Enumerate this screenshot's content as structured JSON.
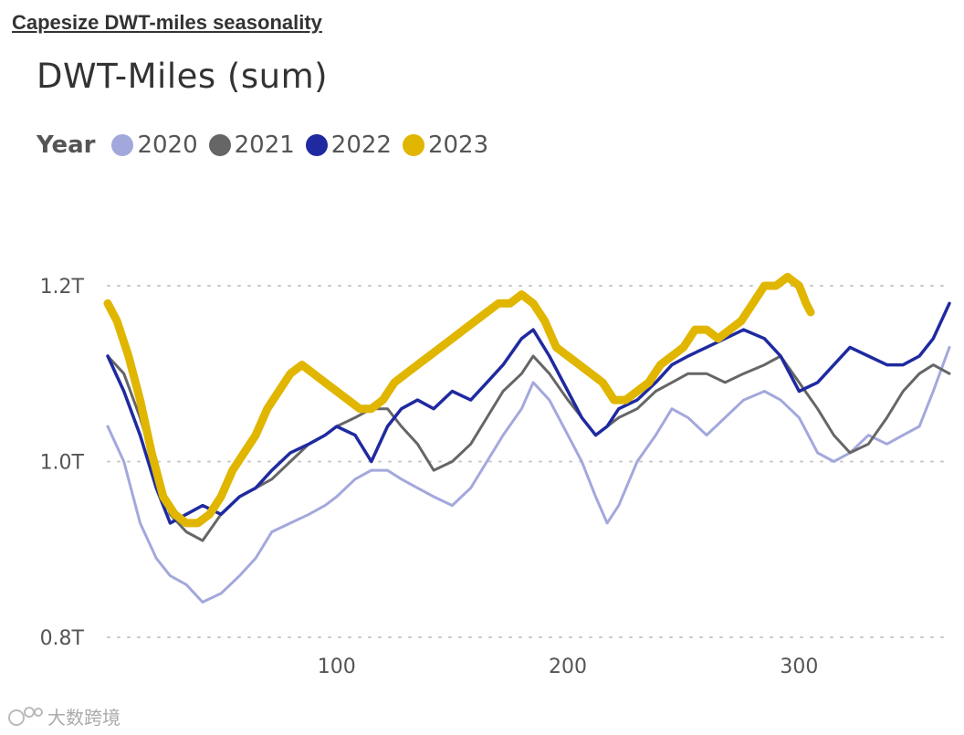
{
  "heading": "Capesize DWT-miles seasonality",
  "watermark": "大数跨境",
  "chart_data": {
    "type": "line",
    "title": "DWT-Miles (sum)",
    "legend_title": "Year",
    "legend_position": "top-left",
    "xlabel": "",
    "ylabel": "",
    "xlim": [
      1,
      365
    ],
    "ylim": [
      0.8,
      1.2
    ],
    "x_ticks": [
      100,
      200,
      300
    ],
    "x_tick_labels": [
      "100",
      "200",
      "300"
    ],
    "y_ticks": [
      0.8,
      1.0,
      1.2
    ],
    "y_tick_labels": [
      "0.8T",
      "1.0T",
      "1.2T"
    ],
    "grid": "horizontal-dotted",
    "series": [
      {
        "name": "2020",
        "color": "#a3a8dc",
        "line_width": 3,
        "x": [
          1,
          8,
          15,
          22,
          28,
          35,
          42,
          50,
          58,
          65,
          72,
          80,
          88,
          95,
          100,
          108,
          115,
          122,
          128,
          135,
          142,
          150,
          158,
          165,
          172,
          180,
          185,
          192,
          200,
          206,
          212,
          217,
          222,
          230,
          238,
          245,
          252,
          260,
          268,
          276,
          285,
          292,
          300,
          308,
          315,
          322,
          330,
          338,
          345,
          352,
          358,
          365
        ],
        "values": [
          1.04,
          1.0,
          0.93,
          0.89,
          0.87,
          0.86,
          0.84,
          0.85,
          0.87,
          0.89,
          0.92,
          0.93,
          0.94,
          0.95,
          0.96,
          0.98,
          0.99,
          0.99,
          0.98,
          0.97,
          0.96,
          0.95,
          0.97,
          1.0,
          1.03,
          1.06,
          1.09,
          1.07,
          1.03,
          1.0,
          0.96,
          0.93,
          0.95,
          1.0,
          1.03,
          1.06,
          1.05,
          1.03,
          1.05,
          1.07,
          1.08,
          1.07,
          1.05,
          1.01,
          1.0,
          1.01,
          1.03,
          1.02,
          1.03,
          1.04,
          1.08,
          1.13
        ]
      },
      {
        "name": "2021",
        "color": "#666666",
        "line_width": 3,
        "x": [
          1,
          8,
          15,
          22,
          28,
          35,
          42,
          50,
          58,
          65,
          72,
          80,
          88,
          95,
          100,
          108,
          115,
          122,
          128,
          135,
          142,
          150,
          158,
          165,
          172,
          180,
          185,
          192,
          200,
          206,
          212,
          217,
          222,
          230,
          238,
          245,
          252,
          260,
          268,
          276,
          285,
          292,
          300,
          308,
          315,
          322,
          330,
          338,
          345,
          352,
          358,
          365
        ],
        "values": [
          1.12,
          1.1,
          1.05,
          0.99,
          0.94,
          0.92,
          0.91,
          0.94,
          0.96,
          0.97,
          0.98,
          1.0,
          1.02,
          1.03,
          1.04,
          1.05,
          1.06,
          1.06,
          1.04,
          1.02,
          0.99,
          1.0,
          1.02,
          1.05,
          1.08,
          1.1,
          1.12,
          1.1,
          1.07,
          1.05,
          1.03,
          1.04,
          1.05,
          1.06,
          1.08,
          1.09,
          1.1,
          1.1,
          1.09,
          1.1,
          1.11,
          1.12,
          1.09,
          1.06,
          1.03,
          1.01,
          1.02,
          1.05,
          1.08,
          1.1,
          1.11,
          1.1
        ]
      },
      {
        "name": "2022",
        "color": "#1f2aa0",
        "line_width": 3.5,
        "x": [
          1,
          8,
          15,
          22,
          28,
          35,
          42,
          50,
          58,
          65,
          72,
          80,
          88,
          95,
          100,
          108,
          115,
          122,
          128,
          135,
          142,
          150,
          158,
          165,
          172,
          180,
          185,
          192,
          200,
          206,
          212,
          217,
          222,
          230,
          238,
          245,
          252,
          260,
          268,
          276,
          285,
          292,
          300,
          308,
          315,
          322,
          330,
          338,
          345,
          352,
          358,
          365
        ],
        "values": [
          1.12,
          1.08,
          1.03,
          0.97,
          0.93,
          0.94,
          0.95,
          0.94,
          0.96,
          0.97,
          0.99,
          1.01,
          1.02,
          1.03,
          1.04,
          1.03,
          1.0,
          1.04,
          1.06,
          1.07,
          1.06,
          1.08,
          1.07,
          1.09,
          1.11,
          1.14,
          1.15,
          1.12,
          1.08,
          1.05,
          1.03,
          1.04,
          1.06,
          1.07,
          1.09,
          1.11,
          1.12,
          1.13,
          1.14,
          1.15,
          1.14,
          1.12,
          1.08,
          1.09,
          1.11,
          1.13,
          1.12,
          1.11,
          1.11,
          1.12,
          1.14,
          1.18
        ]
      },
      {
        "name": "2023",
        "color": "#e0b600",
        "line_width": 9,
        "x": [
          1,
          5,
          10,
          15,
          20,
          25,
          30,
          35,
          40,
          45,
          50,
          55,
          60,
          65,
          70,
          75,
          80,
          85,
          90,
          95,
          100,
          105,
          110,
          115,
          120,
          125,
          130,
          135,
          140,
          145,
          150,
          155,
          160,
          165,
          170,
          175,
          180,
          185,
          190,
          195,
          200,
          205,
          210,
          215,
          220,
          225,
          230,
          235,
          240,
          245,
          250,
          255,
          260,
          265,
          270,
          275,
          280,
          285,
          290,
          295,
          300,
          303,
          305
        ],
        "values": [
          1.18,
          1.16,
          1.12,
          1.07,
          1.01,
          0.96,
          0.94,
          0.93,
          0.93,
          0.94,
          0.96,
          0.99,
          1.01,
          1.03,
          1.06,
          1.08,
          1.1,
          1.11,
          1.1,
          1.09,
          1.08,
          1.07,
          1.06,
          1.06,
          1.07,
          1.09,
          1.1,
          1.11,
          1.12,
          1.13,
          1.14,
          1.15,
          1.16,
          1.17,
          1.18,
          1.18,
          1.19,
          1.18,
          1.16,
          1.13,
          1.12,
          1.11,
          1.1,
          1.09,
          1.07,
          1.07,
          1.08,
          1.09,
          1.11,
          1.12,
          1.13,
          1.15,
          1.15,
          1.14,
          1.15,
          1.16,
          1.18,
          1.2,
          1.2,
          1.21,
          1.2,
          1.18,
          1.17
        ]
      }
    ]
  }
}
